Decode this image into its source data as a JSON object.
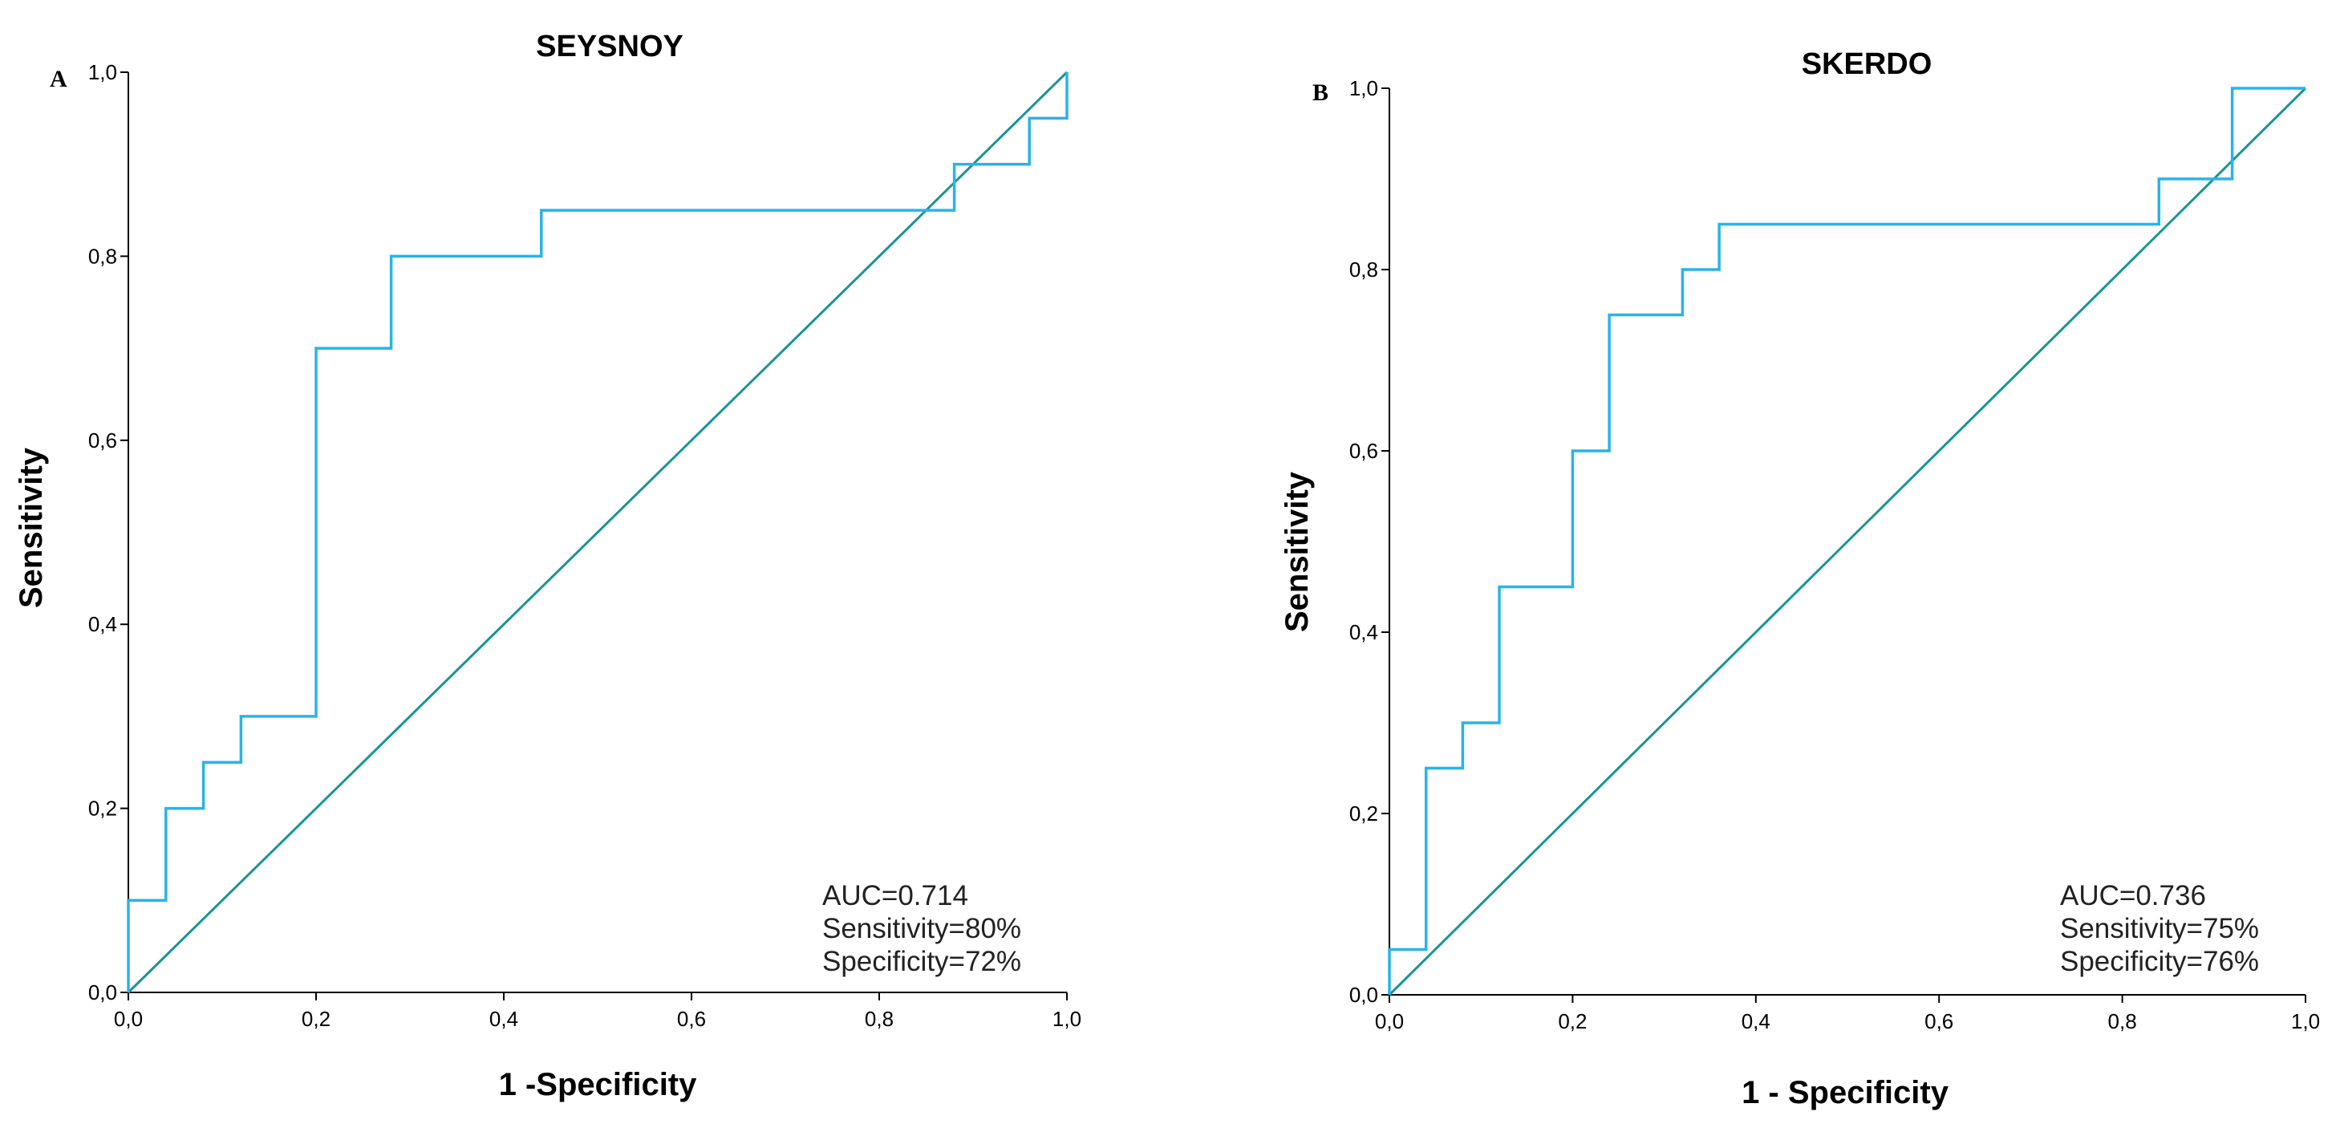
{
  "chart_data": [
    {
      "type": "line",
      "panel": "A",
      "title": "SEYSNOY",
      "xlabel": "1 -Specificity",
      "ylabel": "Sensitivity",
      "xlim": [
        0,
        1
      ],
      "ylim": [
        0,
        1
      ],
      "xticks": [
        "0,0",
        "0,2",
        "0,4",
        "0,6",
        "0,8",
        "1,0"
      ],
      "yticks": [
        "0,0",
        "0,2",
        "0,4",
        "0,6",
        "0,8",
        "1,0"
      ],
      "tick_values": [
        0,
        0.2,
        0.4,
        0.6,
        0.8,
        1.0
      ],
      "colors": {
        "roc": "#29b3ea",
        "reference": "#1a9494"
      },
      "series": [
        {
          "name": "ROC",
          "x": [
            0,
            0,
            0.04,
            0.04,
            0.08,
            0.08,
            0.12,
            0.12,
            0.2,
            0.2,
            0.28,
            0.28,
            0.44,
            0.44,
            0.88,
            0.88,
            0.96,
            0.96,
            1.0,
            1.0
          ],
          "y": [
            0,
            0.1,
            0.1,
            0.2,
            0.2,
            0.25,
            0.25,
            0.3,
            0.3,
            0.7,
            0.7,
            0.8,
            0.8,
            0.85,
            0.85,
            0.9,
            0.9,
            0.95,
            0.95,
            1.0
          ]
        },
        {
          "name": "Reference",
          "x": [
            0,
            1
          ],
          "y": [
            0,
            1
          ]
        }
      ],
      "annotations": [
        "AUC=0.714",
        "Sensitivity=80%",
        "Specificity=72%"
      ]
    },
    {
      "type": "line",
      "panel": "B",
      "title": "SKERDO",
      "xlabel": "1 - Specificity",
      "ylabel": "Sensitivity",
      "xlim": [
        0,
        1
      ],
      "ylim": [
        0,
        1
      ],
      "xticks": [
        "0,0",
        "0,2",
        "0,4",
        "0,6",
        "0,8",
        "1,0"
      ],
      "yticks": [
        "0,0",
        "0,2",
        "0,4",
        "0,6",
        "0,8",
        "1,0"
      ],
      "tick_values": [
        0,
        0.2,
        0.4,
        0.6,
        0.8,
        1.0
      ],
      "colors": {
        "roc": "#29b3ea",
        "reference": "#1a9494"
      },
      "series": [
        {
          "name": "ROC",
          "x": [
            0,
            0,
            0.04,
            0.04,
            0.08,
            0.08,
            0.12,
            0.12,
            0.2,
            0.2,
            0.24,
            0.24,
            0.32,
            0.32,
            0.36,
            0.36,
            0.84,
            0.84,
            0.92,
            0.92,
            1.0
          ],
          "y": [
            0,
            0.05,
            0.05,
            0.25,
            0.25,
            0.3,
            0.3,
            0.45,
            0.45,
            0.6,
            0.6,
            0.75,
            0.75,
            0.8,
            0.8,
            0.85,
            0.85,
            0.9,
            0.9,
            1.0,
            1.0
          ]
        },
        {
          "name": "Reference",
          "x": [
            0,
            1
          ],
          "y": [
            0,
            1
          ]
        }
      ],
      "annotations": [
        "AUC=0.736",
        "Sensitivity=75%",
        "Specificity=76%"
      ]
    }
  ]
}
